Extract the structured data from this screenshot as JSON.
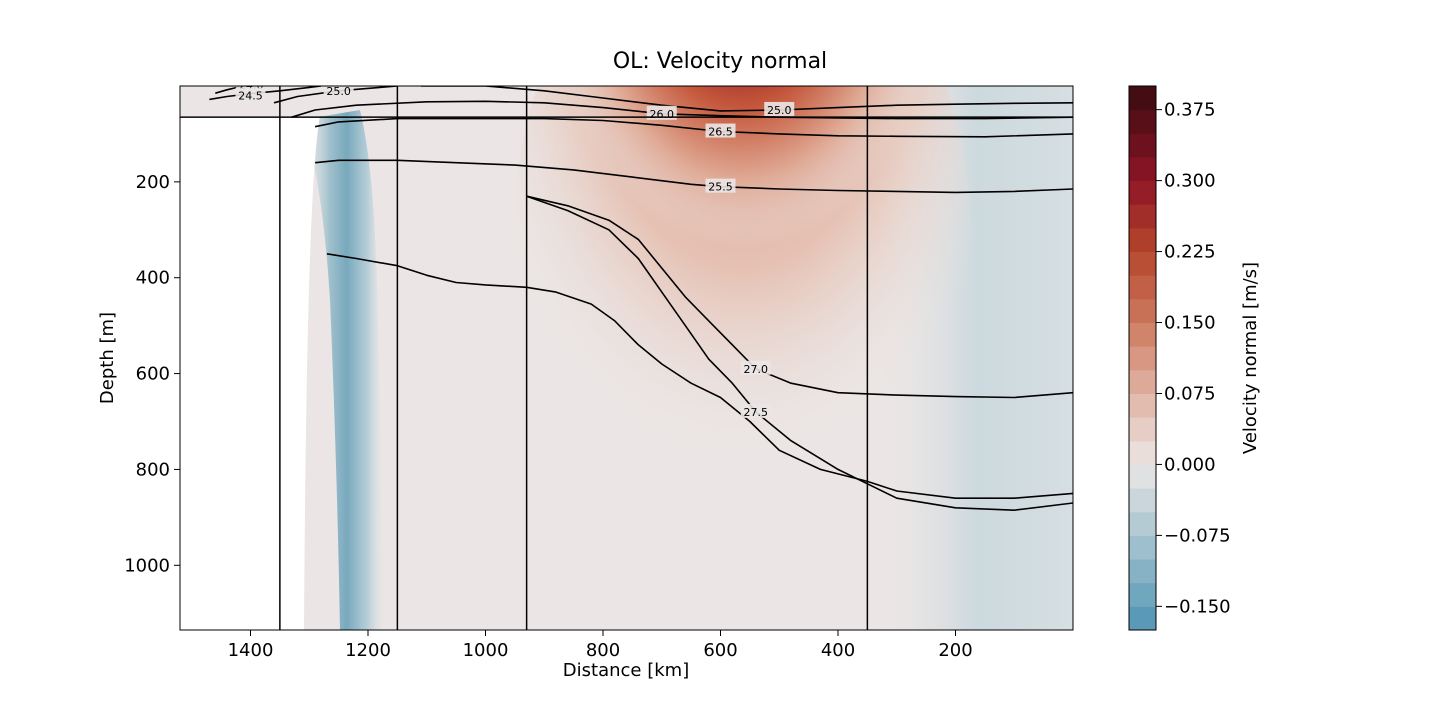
{
  "chart_data": {
    "type": "contour",
    "title": "OL: Velocity normal",
    "xlabel": "Distance [km]",
    "ylabel": "Depth [m]",
    "xlim": [
      1520,
      0
    ],
    "ylim": [
      1135,
      0
    ],
    "x_ticks": [
      1400,
      1200,
      1000,
      800,
      600,
      400,
      200
    ],
    "y_ticks": [
      200,
      400,
      600,
      800,
      1000
    ],
    "colorbar": {
      "label": "Velocity normal [m/s]",
      "range": [
        -0.175,
        0.4
      ],
      "ticks": [
        "−0.150",
        "−0.075",
        "0.000",
        "0.075",
        "0.150",
        "0.225",
        "0.300",
        "0.375"
      ],
      "tick_values": [
        -0.15,
        -0.075,
        0.0,
        0.075,
        0.15,
        0.225,
        0.3,
        0.375
      ],
      "colormap_stops": [
        {
          "value": -0.175,
          "color": "#4f93b5"
        },
        {
          "value": -0.075,
          "color": "#a9c5d0"
        },
        {
          "value": 0.0,
          "color": "#ebe6e5"
        },
        {
          "value": 0.075,
          "color": "#e0b4a4"
        },
        {
          "value": 0.15,
          "color": "#cd7a5f"
        },
        {
          "value": 0.225,
          "color": "#b5462c"
        },
        {
          "value": 0.3,
          "color": "#8e1526"
        },
        {
          "value": 0.4,
          "color": "#3a0b10"
        }
      ]
    },
    "station_lines_km": [
      1350,
      1150,
      930,
      350
    ],
    "mixed_layer_depth_m": 65,
    "isopycnals": [
      {
        "label": "24.0",
        "points": [
          [
            1460,
            15
          ],
          [
            1440,
            8
          ],
          [
            1420,
            2
          ],
          [
            1400,
            0
          ]
        ]
      },
      {
        "label": "24.5",
        "points": [
          [
            1470,
            28
          ],
          [
            1440,
            22
          ],
          [
            1400,
            16
          ],
          [
            1350,
            10
          ],
          [
            1300,
            3
          ],
          [
            1280,
            0
          ]
        ]
      },
      {
        "label": "25.0",
        "points": [
          [
            1360,
            35
          ],
          [
            1320,
            22
          ],
          [
            1250,
            10
          ],
          [
            1180,
            3
          ],
          [
            1150,
            0
          ]
        ]
      },
      {
        "label": "25.0",
        "points": [
          [
            1110,
            0
          ],
          [
            1000,
            0
          ],
          [
            900,
            10
          ],
          [
            800,
            25
          ],
          [
            700,
            40
          ],
          [
            600,
            52
          ],
          [
            500,
            50
          ],
          [
            400,
            45
          ],
          [
            300,
            40
          ],
          [
            200,
            38
          ],
          [
            100,
            36
          ],
          [
            0,
            35
          ]
        ]
      },
      {
        "label": "26.0",
        "points": [
          [
            1330,
            65
          ],
          [
            1290,
            50
          ],
          [
            1220,
            40
          ],
          [
            1100,
            33
          ],
          [
            1000,
            32
          ],
          [
            900,
            35
          ],
          [
            800,
            45
          ],
          [
            700,
            58
          ],
          [
            600,
            62
          ],
          [
            500,
            65
          ],
          [
            300,
            68
          ],
          [
            150,
            68
          ],
          [
            0,
            65
          ]
        ]
      },
      {
        "label": "26.5",
        "points": [
          [
            1290,
            85
          ],
          [
            1250,
            75
          ],
          [
            1150,
            68
          ],
          [
            1000,
            68
          ],
          [
            900,
            68
          ],
          [
            800,
            72
          ],
          [
            700,
            82
          ],
          [
            600,
            95
          ],
          [
            500,
            100
          ],
          [
            400,
            104
          ],
          [
            300,
            105
          ],
          [
            150,
            106
          ],
          [
            0,
            100
          ]
        ]
      },
      {
        "label": "25.5",
        "points": [
          [
            1290,
            160
          ],
          [
            1250,
            155
          ],
          [
            1150,
            155
          ],
          [
            1050,
            160
          ],
          [
            950,
            165
          ],
          [
            850,
            175
          ],
          [
            750,
            190
          ],
          [
            650,
            205
          ],
          [
            600,
            210
          ],
          [
            500,
            215
          ],
          [
            400,
            218
          ],
          [
            300,
            220
          ],
          [
            200,
            222
          ],
          [
            100,
            220
          ],
          [
            0,
            215
          ]
        ]
      },
      {
        "label": "",
        "points": [
          [
            1270,
            350
          ],
          [
            1220,
            360
          ],
          [
            1150,
            375
          ],
          [
            1100,
            395
          ],
          [
            1050,
            410
          ],
          [
            1000,
            415
          ],
          [
            930,
            420
          ],
          [
            880,
            430
          ],
          [
            820,
            455
          ],
          [
            780,
            490
          ],
          [
            740,
            540
          ],
          [
            700,
            580
          ],
          [
            650,
            620
          ],
          [
            600,
            650
          ],
          [
            550,
            700
          ],
          [
            500,
            760
          ],
          [
            430,
            800
          ],
          [
            350,
            825
          ],
          [
            300,
            845
          ],
          [
            200,
            860
          ],
          [
            100,
            860
          ],
          [
            0,
            850
          ]
        ]
      },
      {
        "label": "27.0",
        "points": [
          [
            930,
            230
          ],
          [
            860,
            250
          ],
          [
            790,
            280
          ],
          [
            740,
            320
          ],
          [
            700,
            380
          ],
          [
            660,
            440
          ],
          [
            620,
            490
          ],
          [
            580,
            540
          ],
          [
            540,
            590
          ],
          [
            480,
            620
          ],
          [
            400,
            640
          ],
          [
            300,
            645
          ],
          [
            200,
            648
          ],
          [
            100,
            650
          ],
          [
            0,
            640
          ]
        ]
      },
      {
        "label": "27.5",
        "points": [
          [
            930,
            230
          ],
          [
            860,
            260
          ],
          [
            790,
            300
          ],
          [
            740,
            360
          ],
          [
            700,
            430
          ],
          [
            660,
            500
          ],
          [
            620,
            570
          ],
          [
            580,
            620
          ],
          [
            540,
            680
          ],
          [
            480,
            740
          ],
          [
            400,
            800
          ],
          [
            350,
            830
          ],
          [
            300,
            860
          ],
          [
            200,
            880
          ],
          [
            100,
            885
          ],
          [
            0,
            870
          ]
        ]
      }
    ]
  }
}
